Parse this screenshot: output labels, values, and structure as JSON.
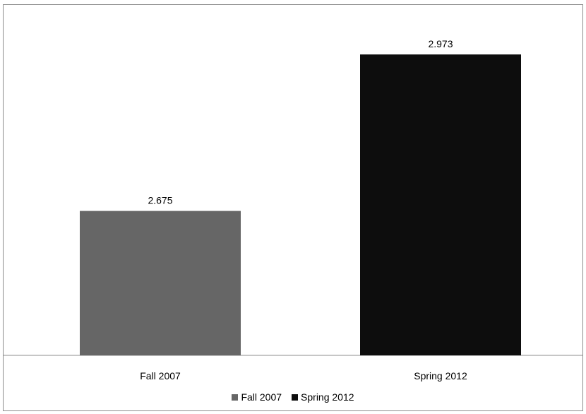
{
  "chart_data": {
    "type": "bar",
    "categories": [
      "Fall 2007",
      "Spring 2012"
    ],
    "values": [
      2.675,
      2.973
    ],
    "value_labels": [
      "2.675",
      "2.973"
    ],
    "colors": [
      "#666666",
      "#0d0d0d"
    ],
    "title": "",
    "xlabel": "",
    "ylabel": "",
    "ylim": [
      2.4,
      3.0
    ],
    "grid": false,
    "legend": {
      "position": "bottom",
      "entries": [
        {
          "label": "Fall 2007",
          "color": "#666666"
        },
        {
          "label": "Spring 2012",
          "color": "#0d0d0d"
        }
      ]
    }
  }
}
